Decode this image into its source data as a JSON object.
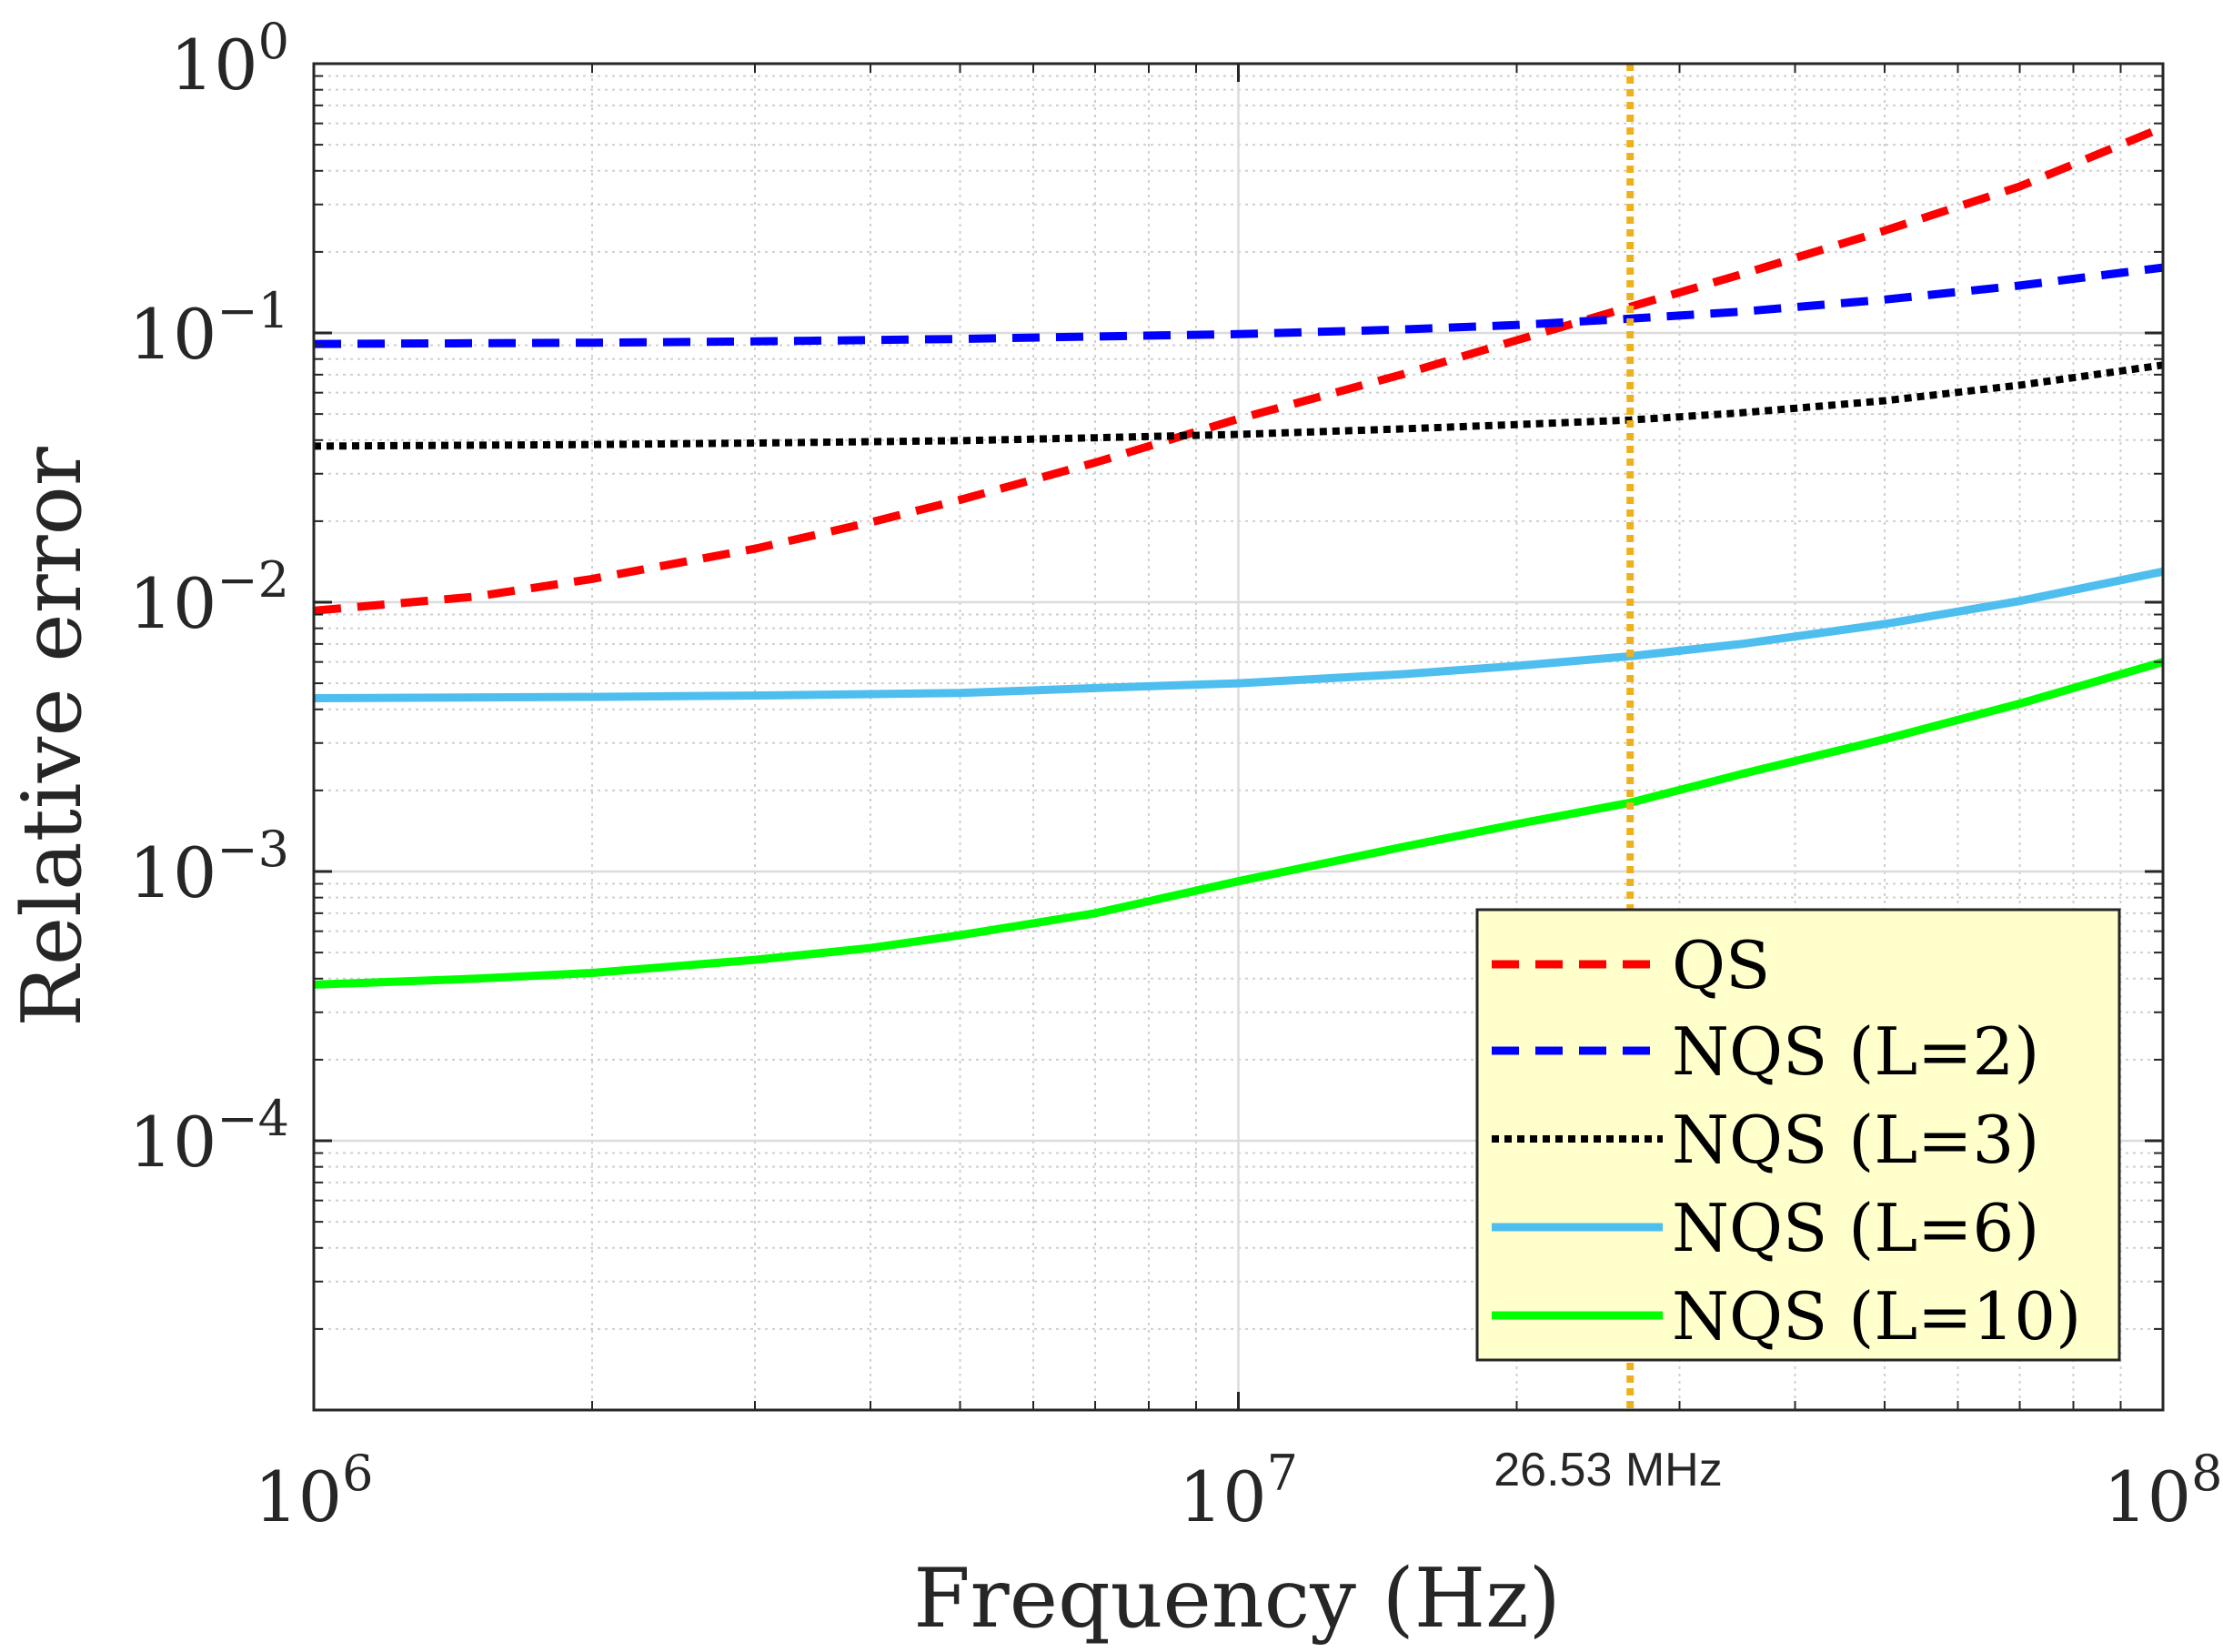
{
  "chart_data": {
    "type": "line",
    "title": "",
    "xlabel": "Frequency (Hz)",
    "ylabel": "Relative error",
    "xscale": "log",
    "yscale": "log",
    "xlim": [
      1000000,
      100000000
    ],
    "ylim": [
      1e-05,
      1
    ],
    "grid": "major and minor",
    "x_ticks": [
      {
        "value": 1000000,
        "base": "10",
        "exp": "6"
      },
      {
        "value": 10000000,
        "base": "10",
        "exp": "7"
      },
      {
        "value": 100000000,
        "base": "10",
        "exp": "8"
      }
    ],
    "y_ticks": [
      {
        "value": 1,
        "base": "10",
        "exp": "0"
      },
      {
        "value": 0.1,
        "base": "10",
        "exp": "−1"
      },
      {
        "value": 0.01,
        "base": "10",
        "exp": "−2"
      },
      {
        "value": 0.001,
        "base": "10",
        "exp": "−3"
      },
      {
        "value": 0.0001,
        "base": "10",
        "exp": "−4"
      }
    ],
    "vline": {
      "x": 26530000,
      "label": "26.53 MHz",
      "color": "#EDB120"
    },
    "legend_position": "bottom-right",
    "legend_bg": "#FFFFCC",
    "series": [
      {
        "name": "QS",
        "color": "#FF0000",
        "style": "dashed",
        "x": [
          1000000,
          1500000,
          2000000,
          3000000,
          4000000,
          5000000,
          7000000,
          10000000,
          15000000,
          20000000,
          26530000,
          35000000,
          50000000,
          70000000,
          100000000
        ],
        "y": [
          0.0093,
          0.0105,
          0.0122,
          0.0158,
          0.0198,
          0.024,
          0.033,
          0.048,
          0.07,
          0.094,
          0.125,
          0.165,
          0.24,
          0.35,
          0.58
        ]
      },
      {
        "name": "NQS (L=2)",
        "color": "#0000FF",
        "style": "dashed",
        "x": [
          1000000,
          2000000,
          3000000,
          5000000,
          7000000,
          10000000,
          15000000,
          20000000,
          26530000,
          35000000,
          50000000,
          70000000,
          100000000
        ],
        "y": [
          0.091,
          0.092,
          0.093,
          0.095,
          0.097,
          0.099,
          0.103,
          0.107,
          0.113,
          0.12,
          0.133,
          0.15,
          0.175
        ]
      },
      {
        "name": "NQS (L=3)",
        "color": "#000000",
        "style": "dotted",
        "x": [
          1000000,
          2000000,
          3000000,
          5000000,
          7000000,
          10000000,
          15000000,
          20000000,
          26530000,
          35000000,
          50000000,
          70000000,
          100000000
        ],
        "y": [
          0.038,
          0.0385,
          0.039,
          0.0398,
          0.0408,
          0.042,
          0.044,
          0.0457,
          0.0475,
          0.0505,
          0.056,
          0.064,
          0.076
        ]
      },
      {
        "name": "NQS (L=6)",
        "color": "#4DBEEE",
        "style": "solid",
        "x": [
          1000000,
          2000000,
          3000000,
          5000000,
          7000000,
          10000000,
          15000000,
          20000000,
          26530000,
          35000000,
          50000000,
          70000000,
          100000000
        ],
        "y": [
          0.0044,
          0.00445,
          0.0045,
          0.0046,
          0.0048,
          0.005,
          0.0054,
          0.0058,
          0.0063,
          0.007,
          0.0083,
          0.0101,
          0.013
        ]
      },
      {
        "name": "NQS (L=10)",
        "color": "#00FF00",
        "style": "solid",
        "x": [
          1000000,
          1500000,
          2000000,
          3000000,
          4000000,
          5000000,
          7000000,
          10000000,
          15000000,
          20000000,
          26530000,
          35000000,
          50000000,
          70000000,
          100000000
        ],
        "y": [
          0.00038,
          0.0004,
          0.00042,
          0.00047,
          0.00052,
          0.00058,
          0.0007,
          0.00092,
          0.00123,
          0.0015,
          0.0018,
          0.0023,
          0.0031,
          0.0042,
          0.006
        ]
      }
    ]
  }
}
